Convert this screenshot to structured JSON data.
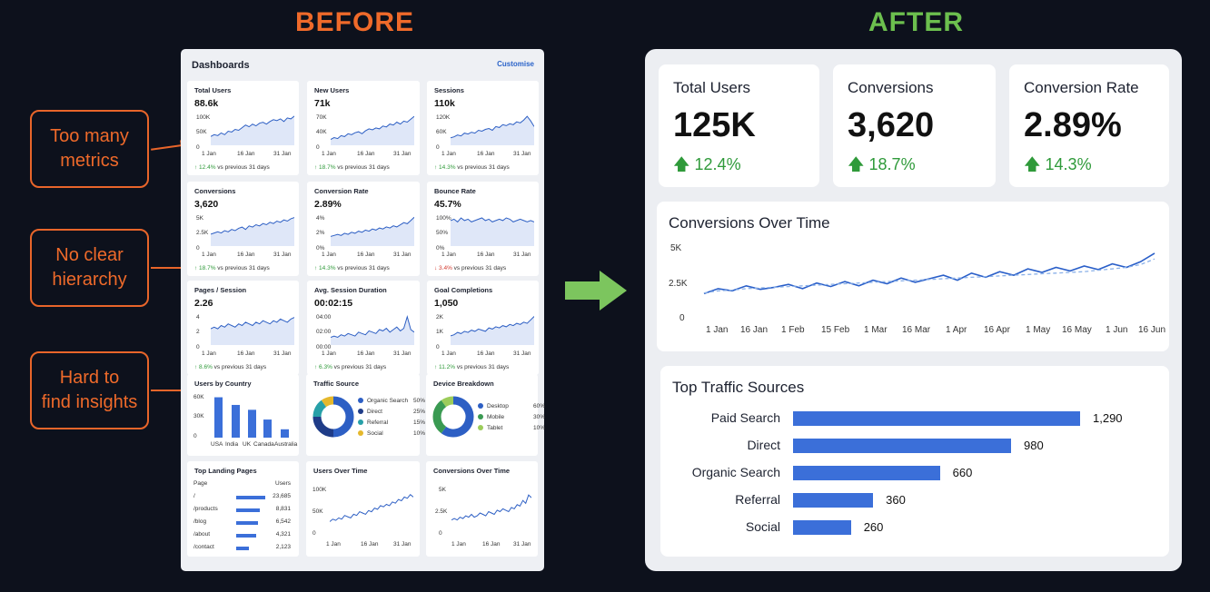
{
  "headers": {
    "before": "BEFORE",
    "after": "AFTER"
  },
  "callouts": [
    {
      "line1": "Too many",
      "line2": "metrics"
    },
    {
      "line1": "No clear",
      "line2": "hierarchy"
    },
    {
      "line1": "Hard to",
      "line2": "find insights"
    }
  ],
  "before": {
    "title": "Dashboards",
    "customise": "Customise",
    "metrics": [
      {
        "title": "Total Users",
        "value": "88.6k",
        "y_top": "100K",
        "y_mid": "50K",
        "y_bot": "0",
        "x": [
          "1 Jan",
          "16 Jan",
          "31 Jan"
        ],
        "change": "↑ 12.4%",
        "dir": "up",
        "suffix": " vs previous 31 days"
      },
      {
        "title": "New Users",
        "value": "71k",
        "y_top": "70K",
        "y_mid": "40K",
        "y_bot": "0",
        "x": [
          "1 Jan",
          "16 Jan",
          "31 Jan"
        ],
        "change": "↑ 18.7%",
        "dir": "up",
        "suffix": " vs previous 31 days"
      },
      {
        "title": "Sessions",
        "value": "110k",
        "y_top": "120K",
        "y_mid": "60K",
        "y_bot": "0",
        "x": [
          "1 Jan",
          "16 Jan",
          "31 Jan"
        ],
        "change": "↑ 14.3%",
        "dir": "up",
        "suffix": " vs previous 31 days"
      },
      {
        "title": "Conversions",
        "value": "3,620",
        "y_top": "5K",
        "y_mid": "2.5K",
        "y_bot": "0",
        "x": [
          "1 Jan",
          "16 Jan",
          "31 Jan"
        ],
        "change": "↑ 18.7%",
        "dir": "up",
        "suffix": " vs previous 31 days"
      },
      {
        "title": "Conversion Rate",
        "value": "2.89%",
        "y_top": "4%",
        "y_mid": "2%",
        "y_bot": "0%",
        "x": [
          "1 Jan",
          "16 Jan",
          "31 Jan"
        ],
        "change": "↑ 14.3%",
        "dir": "up",
        "suffix": " vs previous 31 days"
      },
      {
        "title": "Bounce Rate",
        "value": "45.7%",
        "y_top": "100%",
        "y_mid": "50%",
        "y_bot": "0%",
        "x": [
          "1 Jan",
          "16 Jan",
          "31 Jan"
        ],
        "change": "↓ 3.4%",
        "dir": "down",
        "suffix": " vs previous 31 days"
      },
      {
        "title": "Pages / Session",
        "value": "2.26",
        "y_top": "4",
        "y_mid": "2",
        "y_bot": "0",
        "x": [
          "1 Jan",
          "16 Jan",
          "31 Jan"
        ],
        "change": "↑ 8.6%",
        "dir": "up",
        "suffix": " vs previous 31 days"
      },
      {
        "title": "Avg. Session Duration",
        "value": "00:02:15",
        "y_top": "04:00",
        "y_mid": "02:00",
        "y_bot": "00:00",
        "x": [
          "1 Jan",
          "16 Jan",
          "31 Jan"
        ],
        "change": "↑ 6.3%",
        "dir": "up",
        "suffix": " vs previous 31 days"
      },
      {
        "title": "Goal Completions",
        "value": "1,050",
        "y_top": "2K",
        "y_mid": "1K",
        "y_bot": "0",
        "x": [
          "1 Jan",
          "16 Jan",
          "31 Jan"
        ],
        "change": "↑ 11.2%",
        "dir": "up",
        "suffix": " vs previous 31 days"
      }
    ],
    "users_by_country": {
      "title": "Users by Country",
      "y": [
        "60K",
        "30K",
        "0"
      ],
      "countries": [
        "USA",
        "India",
        "UK",
        "Canada",
        "Australia"
      ]
    },
    "traffic_source": {
      "title": "Traffic Source",
      "items": [
        {
          "label": "Organic Search",
          "pct": "50%",
          "color": "#2d5fc4"
        },
        {
          "label": "Direct",
          "pct": "25%",
          "color": "#1f3c88"
        },
        {
          "label": "Referral",
          "pct": "15%",
          "color": "#27a0a8"
        },
        {
          "label": "Social",
          "pct": "10%",
          "color": "#e5b82c"
        }
      ]
    },
    "device_breakdown": {
      "title": "Device Breakdown",
      "items": [
        {
          "label": "Desktop",
          "pct": "60%",
          "color": "#2d5fc4"
        },
        {
          "label": "Mobile",
          "pct": "30%",
          "color": "#3a9a52"
        },
        {
          "label": "Tablet",
          "pct": "10%",
          "color": "#9ccc5a"
        }
      ]
    },
    "landing_pages": {
      "title": "Top Landing Pages",
      "col_page": "Page",
      "col_users": "Users",
      "rows": [
        {
          "page": "/",
          "users": "23,685"
        },
        {
          "page": "/products",
          "users": "8,831"
        },
        {
          "page": "/blog",
          "users": "6,542"
        },
        {
          "page": "/about",
          "users": "4,321"
        },
        {
          "page": "/contact",
          "users": "2,123"
        }
      ]
    },
    "users_over_time": {
      "title": "Users Over Time",
      "y": [
        "100K",
        "50K",
        "0"
      ],
      "x": [
        "1 Jan",
        "16 Jan",
        "31 Jan"
      ]
    },
    "conversions_over_time": {
      "title": "Conversions Over Time",
      "y": [
        "5K",
        "2.5K",
        "0"
      ],
      "x": [
        "1 Jan",
        "16 Jan",
        "31 Jan"
      ]
    }
  },
  "after": {
    "kpis": [
      {
        "title": "Total Users",
        "value": "125K",
        "change": "12.4%"
      },
      {
        "title": "Conversions",
        "value": "3,620",
        "change": "18.7%"
      },
      {
        "title": "Conversion Rate",
        "value": "2.89%",
        "change": "14.3%"
      }
    ],
    "conv_chart": {
      "title": "Conversions Over Time",
      "y_ticks": [
        "5K",
        "2.5K",
        "0"
      ],
      "x_ticks": [
        "1 Jan",
        "16 Jan",
        "1 Feb",
        "15 Feb",
        "1 Mar",
        "16 Mar",
        "1 Apr",
        "16 Apr",
        "1 May",
        "16 May",
        "1 Jun",
        "16 Jun"
      ]
    },
    "traffic": {
      "title": "Top Traffic Sources",
      "rows": [
        {
          "label": "Paid Search",
          "value": "1,290"
        },
        {
          "label": "Direct",
          "value": "980"
        },
        {
          "label": "Organic Search",
          "value": "660"
        },
        {
          "label": "Referral",
          "value": "360"
        },
        {
          "label": "Social",
          "value": "260"
        }
      ]
    }
  },
  "chart_data": [
    {
      "type": "bar",
      "title": "Users by Country",
      "categories": [
        "USA",
        "India",
        "UK",
        "Canada",
        "Australia"
      ],
      "values": [
        58000,
        47000,
        40000,
        26000,
        12000
      ],
      "ylim": [
        0,
        60000
      ]
    },
    {
      "type": "pie",
      "title": "Traffic Source",
      "categories": [
        "Organic Search",
        "Direct",
        "Referral",
        "Social"
      ],
      "values": [
        50,
        25,
        15,
        10
      ]
    },
    {
      "type": "pie",
      "title": "Device Breakdown",
      "categories": [
        "Desktop",
        "Mobile",
        "Tablet"
      ],
      "values": [
        60,
        30,
        10
      ]
    },
    {
      "type": "line",
      "title": "Conversions Over Time",
      "ylim": [
        0,
        5000
      ],
      "series": [
        {
          "values": [
            1450,
            1800,
            1650,
            2000,
            1750,
            1900,
            2100,
            1800,
            2200,
            1950,
            2300,
            2000,
            2400,
            2150,
            2550,
            2250,
            2500,
            2750,
            2400,
            2900,
            2600,
            3000,
            2750,
            3200,
            2950,
            3300,
            3050,
            3400,
            3150,
            3550,
            3300,
            3700,
            4300
          ]
        },
        {
          "values": [
            1500,
            1650,
            1700,
            1800,
            1850,
            1900,
            1950,
            2000,
            2050,
            2100,
            2150,
            2200,
            2250,
            2300,
            2350,
            2400,
            2450,
            2500,
            2550,
            2600,
            2650,
            2700,
            2750,
            2800,
            2850,
            2900,
            2950,
            3000,
            3100,
            3200,
            3300,
            3500,
            3900
          ]
        }
      ]
    },
    {
      "type": "bar",
      "title": "Top Traffic Sources",
      "categories": [
        "Paid Search",
        "Direct",
        "Organic Search",
        "Referral",
        "Social"
      ],
      "values": [
        1290,
        980,
        660,
        360,
        260
      ]
    }
  ]
}
